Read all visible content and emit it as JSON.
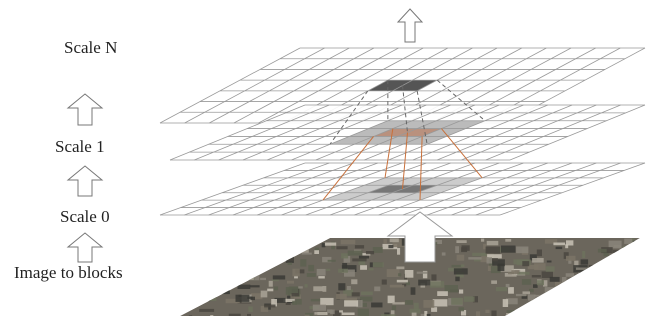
{
  "labels": {
    "scale_n": "Scale N",
    "scale_1": "Scale 1",
    "scale_0": "Scale 0",
    "image": "Image to blocks"
  }
}
